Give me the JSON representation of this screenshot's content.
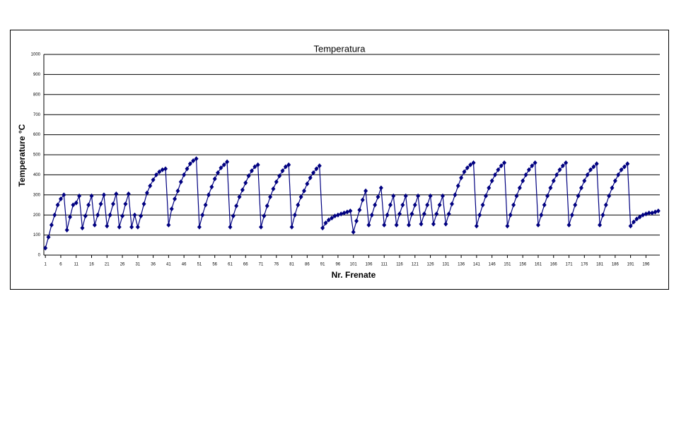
{
  "chart_data": {
    "type": "line",
    "title": "Temperatura",
    "x_label": "Nr. Frenate",
    "y_label": "Temperature °C",
    "x": [
      1,
      2,
      3,
      4,
      5,
      6,
      7,
      8,
      9,
      10,
      11,
      12,
      13,
      14,
      15,
      16,
      17,
      18,
      19,
      20,
      21,
      22,
      23,
      24,
      25,
      26,
      27,
      28,
      29,
      30,
      31,
      32,
      33,
      34,
      35,
      36,
      37,
      38,
      39,
      40,
      41,
      42,
      43,
      44,
      45,
      46,
      47,
      48,
      49,
      50,
      51,
      52,
      53,
      54,
      55,
      56,
      57,
      58,
      59,
      60,
      61,
      62,
      63,
      64,
      65,
      66,
      67,
      68,
      69,
      70,
      71,
      72,
      73,
      74,
      75,
      76,
      77,
      78,
      79,
      80,
      81,
      82,
      83,
      84,
      85,
      86,
      87,
      88,
      89,
      90,
      91,
      92,
      93,
      94,
      95,
      96,
      97,
      98,
      99,
      100,
      101,
      102,
      103,
      104,
      105,
      106,
      107,
      108,
      109,
      110,
      111,
      112,
      113,
      114,
      115,
      116,
      117,
      118,
      119,
      120,
      121,
      122,
      123,
      124,
      125,
      126,
      127,
      128,
      129,
      130,
      131,
      132,
      133,
      134,
      135,
      136,
      137,
      138,
      139,
      140,
      141,
      142,
      143,
      144,
      145,
      146,
      147,
      148,
      149,
      150,
      151,
      152,
      153,
      154,
      155,
      156,
      157,
      158,
      159,
      160,
      161,
      162,
      163,
      164,
      165,
      166,
      167,
      168,
      169,
      170,
      171,
      172,
      173,
      174,
      175,
      176,
      177,
      178,
      179,
      180,
      181,
      182,
      183,
      184,
      185,
      186,
      187,
      188,
      189,
      190,
      191,
      192,
      193,
      194,
      195,
      196,
      197,
      198,
      199,
      200
    ],
    "series": [
      {
        "name": "Temperatura",
        "color": "#000080",
        "values": [
          35,
          90,
          150,
          200,
          250,
          280,
          300,
          125,
          190,
          250,
          260,
          295,
          135,
          195,
          250,
          295,
          150,
          200,
          255,
          300,
          145,
          200,
          255,
          305,
          140,
          195,
          255,
          305,
          140,
          200,
          140,
          195,
          255,
          310,
          345,
          375,
          400,
          415,
          425,
          430,
          150,
          230,
          280,
          320,
          365,
          400,
          430,
          455,
          470,
          480,
          140,
          200,
          250,
          300,
          340,
          380,
          410,
          435,
          450,
          465,
          140,
          195,
          245,
          290,
          325,
          360,
          395,
          420,
          440,
          450,
          140,
          195,
          245,
          290,
          330,
          365,
          395,
          420,
          440,
          450,
          140,
          200,
          250,
          290,
          320,
          355,
          385,
          410,
          430,
          445,
          135,
          160,
          175,
          185,
          195,
          200,
          205,
          210,
          215,
          220,
          115,
          170,
          225,
          275,
          320,
          150,
          200,
          250,
          290,
          335,
          150,
          200,
          250,
          295,
          150,
          205,
          250,
          295,
          150,
          205,
          250,
          295,
          155,
          205,
          250,
          295,
          155,
          205,
          250,
          295,
          155,
          205,
          255,
          300,
          345,
          385,
          415,
          435,
          450,
          460,
          145,
          200,
          250,
          295,
          335,
          370,
          400,
          425,
          445,
          460,
          145,
          200,
          250,
          295,
          335,
          370,
          400,
          425,
          445,
          460,
          150,
          200,
          250,
          295,
          335,
          370,
          400,
          425,
          445,
          460,
          150,
          200,
          250,
          295,
          335,
          370,
          400,
          425,
          440,
          455,
          150,
          200,
          250,
          295,
          335,
          370,
          400,
          425,
          440,
          455,
          145,
          165,
          180,
          190,
          200,
          205,
          210,
          210,
          215,
          220
        ]
      }
    ],
    "xlim": [
      0.5,
      200.5
    ],
    "xticks": [
      1,
      6,
      11,
      16,
      21,
      26,
      31,
      36,
      41,
      46,
      51,
      56,
      61,
      66,
      71,
      76,
      81,
      86,
      91,
      96,
      101,
      106,
      111,
      116,
      121,
      126,
      131,
      136,
      141,
      146,
      151,
      156,
      161,
      166,
      171,
      176,
      181,
      186,
      191,
      196
    ],
    "ylim": [
      0,
      1000
    ],
    "yticks": [
      0,
      100,
      200,
      300,
      400,
      500,
      600,
      700,
      800,
      900,
      1000
    ],
    "grid": true
  }
}
